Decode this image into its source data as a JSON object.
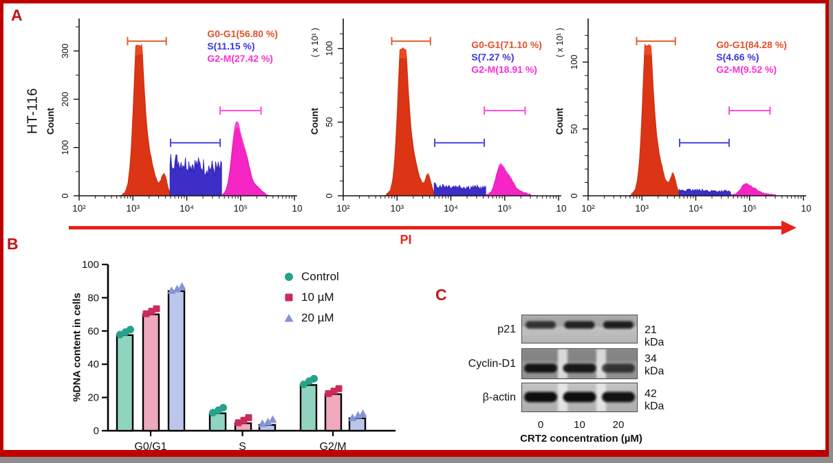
{
  "figure": {
    "panel_a_label": "A",
    "panel_b_label": "B",
    "panel_c_label": "C",
    "cell_line": "HT-116",
    "pi_axis_label": "PI"
  },
  "colors": {
    "frame_border": "#bf0000",
    "outer_shadow": "#8e8e8e",
    "panel_letter": "#c11418",
    "pi_red": "#e8221a",
    "g0g1_text": "#e2512b",
    "s_text": "#3b35dd",
    "g2m_text": "#fb2fd3",
    "g0g1_gate": "#e06030",
    "s_gate": "#4848e2",
    "g2m_gate": "#ff4fd8",
    "hist_red_light": "#ee4722",
    "hist_red_dark": "#d93414",
    "hist_blue": "#3c2ec6",
    "hist_magenta_light": "#ff49d2",
    "hist_magenta_dark": "#f51fc4"
  },
  "chart_data": [
    {
      "type": "area",
      "name": "flow-histogram-control",
      "cell_line": "HT-116",
      "treatment": "Control",
      "ylabel": "Count",
      "y_scale_label": "",
      "x_axis_ticks": [
        "10²",
        "10³",
        "10⁴",
        "10⁵",
        "10"
      ],
      "y_ticks": [
        0,
        100,
        200,
        300
      ],
      "y_max": 360,
      "y_minor_step": 50,
      "phases": {
        "g0g1_label": "G0-G1(56.80 %)",
        "s_label": "S(11.15 %)",
        "g2m_label": "G2-M(27.42 %)",
        "g0g1_pct": 56.8,
        "s_pct": 11.15,
        "g2m_pct": 27.42
      },
      "peaks": {
        "g1_height": 0.86,
        "s_height": 0.153,
        "g2_height": 0.4
      },
      "ann_y": 40,
      "seed": 7
    },
    {
      "type": "area",
      "name": "flow-histogram-10uM",
      "cell_line": "HT-116",
      "treatment": "10 µM",
      "ylabel": "Count",
      "y_scale_label": "( x 10¹ )",
      "x_axis_ticks": [
        "10²",
        "10³",
        "10⁴",
        "10⁵",
        "10"
      ],
      "y_ticks": [
        0,
        50,
        100
      ],
      "y_max": 118,
      "y_minor_step": 10,
      "phases": {
        "g0g1_label": "G0-G1(71.10 %)",
        "s_label": "S(7.27 %)",
        "g2m_label": "G2-M(18.91 %)",
        "g0g1_pct": 71.1,
        "s_pct": 7.27,
        "g2m_pct": 18.91
      },
      "peaks": {
        "g1_height": 0.84,
        "s_height": 0.045,
        "g2_height": 0.17
      },
      "ann_y": 56,
      "seed": 13
    },
    {
      "type": "area",
      "name": "flow-histogram-20uM",
      "cell_line": "HT-116",
      "treatment": "20 µM",
      "ylabel": "Count",
      "y_scale_label": "( x 10¹ )",
      "x_axis_ticks": [
        "10²",
        "10³",
        "10⁴",
        "10⁵",
        "10"
      ],
      "y_ticks": [
        0,
        50,
        100
      ],
      "y_max": 130,
      "y_minor_step": 10,
      "phases": {
        "g0g1_label": "G0-G1(84.28 %)",
        "s_label": "S(4.66 %)",
        "g2m_label": "G2-M(9.52 %)",
        "g0g1_pct": 84.28,
        "s_pct": 4.66,
        "g2m_pct": 9.52
      },
      "peaks": {
        "g1_height": 0.86,
        "s_height": 0.025,
        "g2_height": 0.062
      },
      "ann_y": 56,
      "seed": 29
    },
    {
      "type": "bar",
      "name": "dna-content-bar-chart",
      "categories": [
        "G0/G1",
        "S",
        "G2/M"
      ],
      "series": [
        {
          "name": "Control",
          "marker": "circle",
          "bar_color": "#90d4bf",
          "dot_color": "#26a28b",
          "values": [
            57.5,
            10.5,
            27.5
          ],
          "dot_values": [
            [
              57,
              58.5,
              60
            ],
            [
              10,
              11.5,
              13
            ],
            [
              27,
              29,
              30.5
            ]
          ]
        },
        {
          "name": "10 µM",
          "marker": "square",
          "bar_color": "#f0a8bc",
          "dot_color": "#cb2b5b",
          "values": [
            70,
            4.5,
            22
          ],
          "dot_values": [
            [
              69.5,
              71,
              72.5
            ],
            [
              4,
              5.5,
              7
            ],
            [
              21.5,
              23,
              24.5
            ]
          ]
        },
        {
          "name": "20 µM",
          "marker": "triangle",
          "bar_color": "#bac6ea",
          "dot_color": "#8494d6",
          "values": [
            84,
            3.5,
            7.5
          ],
          "dot_values": [
            [
              83.5,
              84.5,
              86
            ],
            [
              3.5,
              4.5,
              6
            ],
            [
              7,
              8.5,
              9.5
            ]
          ]
        }
      ],
      "ylabel": "%DNA content in cells",
      "y_ticks": [
        0,
        20,
        40,
        60,
        80,
        100
      ],
      "ylim": [
        0,
        100
      ]
    }
  ],
  "panel_c": {
    "rows": [
      {
        "protein": "p21",
        "kda_label": "21 kDa",
        "band_intensities": [
          0.55,
          0.75,
          0.8
        ]
      },
      {
        "protein": "Cyclin-D1",
        "kda_label": "34 kDa",
        "band_intensities": [
          0.9,
          0.85,
          0.5
        ]
      },
      {
        "protein": "β-actin",
        "kda_label": "42 kDa",
        "band_intensities": [
          1,
          1,
          0.95
        ]
      }
    ],
    "lane_labels": [
      "0",
      "10",
      "20"
    ],
    "x_axis_title": "CRT2 concentration (µM)"
  }
}
